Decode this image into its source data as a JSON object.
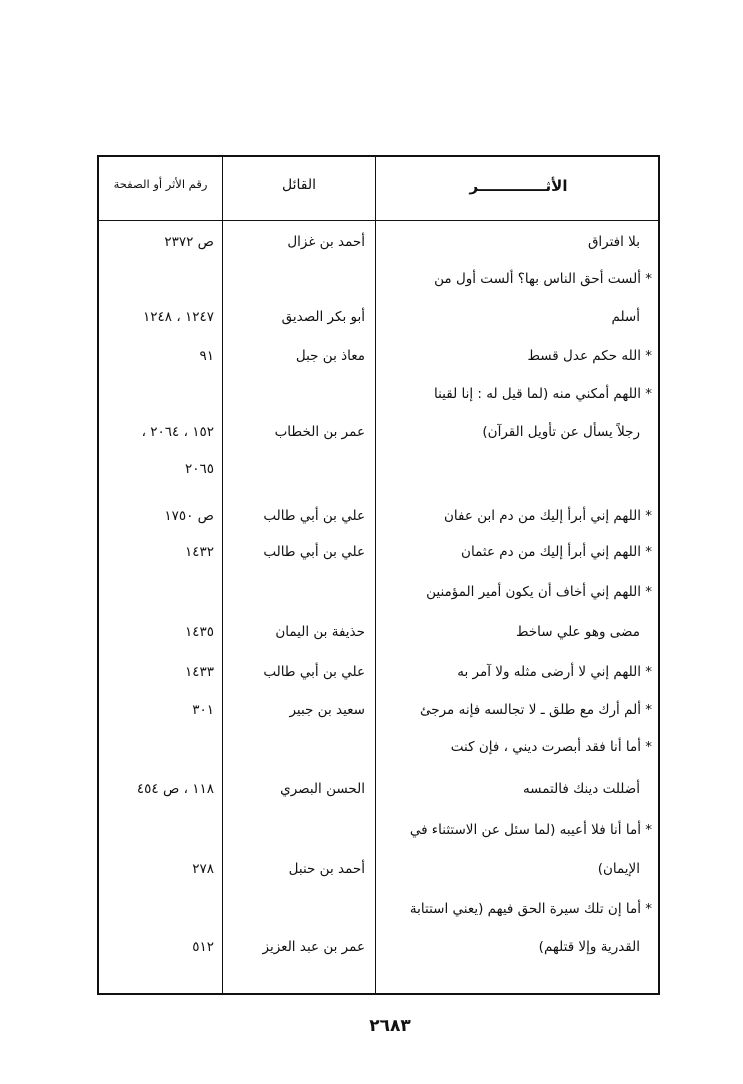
{
  "header": {
    "col_athar": "الأثـــــــــــــر",
    "col_speaker": "القائل",
    "col_ref": "رقم الأثر أو الصفحة"
  },
  "lines": [
    {
      "athar": "بلا افتراق",
      "indent": true,
      "speaker": "أحمد بن غزال",
      "ref": "ص ٢٣٧٢"
    },
    {
      "athar": "* ألست أحق الناس بها؟ ألست أول من",
      "indent": false,
      "speaker": "",
      "ref": ""
    },
    {
      "athar": "أسلم",
      "indent": true,
      "speaker": "أبو بكر الصديق",
      "ref": "١٢٤٧ ، ١٢٤٨"
    },
    {
      "athar": "* الله حكم عدل قسط",
      "indent": false,
      "speaker": "معاذ بن جبل",
      "ref": "٩١"
    },
    {
      "athar": "* اللهم أمكني منه (لما قيل له : إنا لقينا",
      "indent": false,
      "speaker": "",
      "ref": ""
    },
    {
      "athar": "رجلاً يسأل عن تأويل القرآن)",
      "indent": true,
      "speaker": "عمر بن الخطاب",
      "ref": "١٥٢ ، ٢٠٦٤ ،"
    },
    {
      "athar": "",
      "indent": false,
      "speaker": "",
      "ref": "٢٠٦٥"
    },
    {
      "athar": "* اللهم إني أبرأ إليك من دم ابن عفان",
      "indent": false,
      "speaker": "علي بن أبي طالب",
      "ref": "ص ١٧٥٠"
    },
    {
      "athar": "* اللهم إني أبرأ إليك من دم عثمان",
      "indent": false,
      "speaker": "علي بن أبي طالب",
      "ref": "١٤٣٢"
    },
    {
      "athar": "* اللهم إني أخاف أن يكون أمير المؤمنين",
      "indent": false,
      "speaker": "",
      "ref": ""
    },
    {
      "athar": "مضى وهو علي ساخط",
      "indent": true,
      "speaker": "حذيفة بن اليمان",
      "ref": "١٤٣٥"
    },
    {
      "athar": "* اللهم إني لا أرضى مثله ولا آمر به",
      "indent": false,
      "speaker": "علي بن أبي طالب",
      "ref": "١٤٣٣"
    },
    {
      "athar": "* ألم أرك مع طلق ـ لا تجالسه فإنه مرجئ",
      "indent": false,
      "speaker": "سعيد بن جبير",
      "ref": "٣٠١"
    },
    {
      "athar": "* أما أنا فقد أبصرت ديني ، فإن كنت",
      "indent": false,
      "speaker": "",
      "ref": ""
    },
    {
      "athar": "أضللت دينك فالتمسه",
      "indent": true,
      "speaker": "الحسن البصري",
      "ref": "١١٨ ، ص ٤٥٤"
    },
    {
      "athar": "* أما أنا فلا أعيبه (لما سئل عن الاستثناء في",
      "indent": false,
      "speaker": "",
      "ref": ""
    },
    {
      "athar": "الإيمان)",
      "indent": true,
      "speaker": "أحمد بن حنبل",
      "ref": "٢٧٨"
    },
    {
      "athar": "* أما إن تلك سيرة الحق فيهم (يعني استتابة",
      "indent": false,
      "speaker": "",
      "ref": ""
    },
    {
      "athar": "القدرية وإلا قتلهم)",
      "indent": true,
      "speaker": "عمر بن عبد العزيز",
      "ref": "٥١٢"
    }
  ],
  "page_number": "٢٦٨٣"
}
